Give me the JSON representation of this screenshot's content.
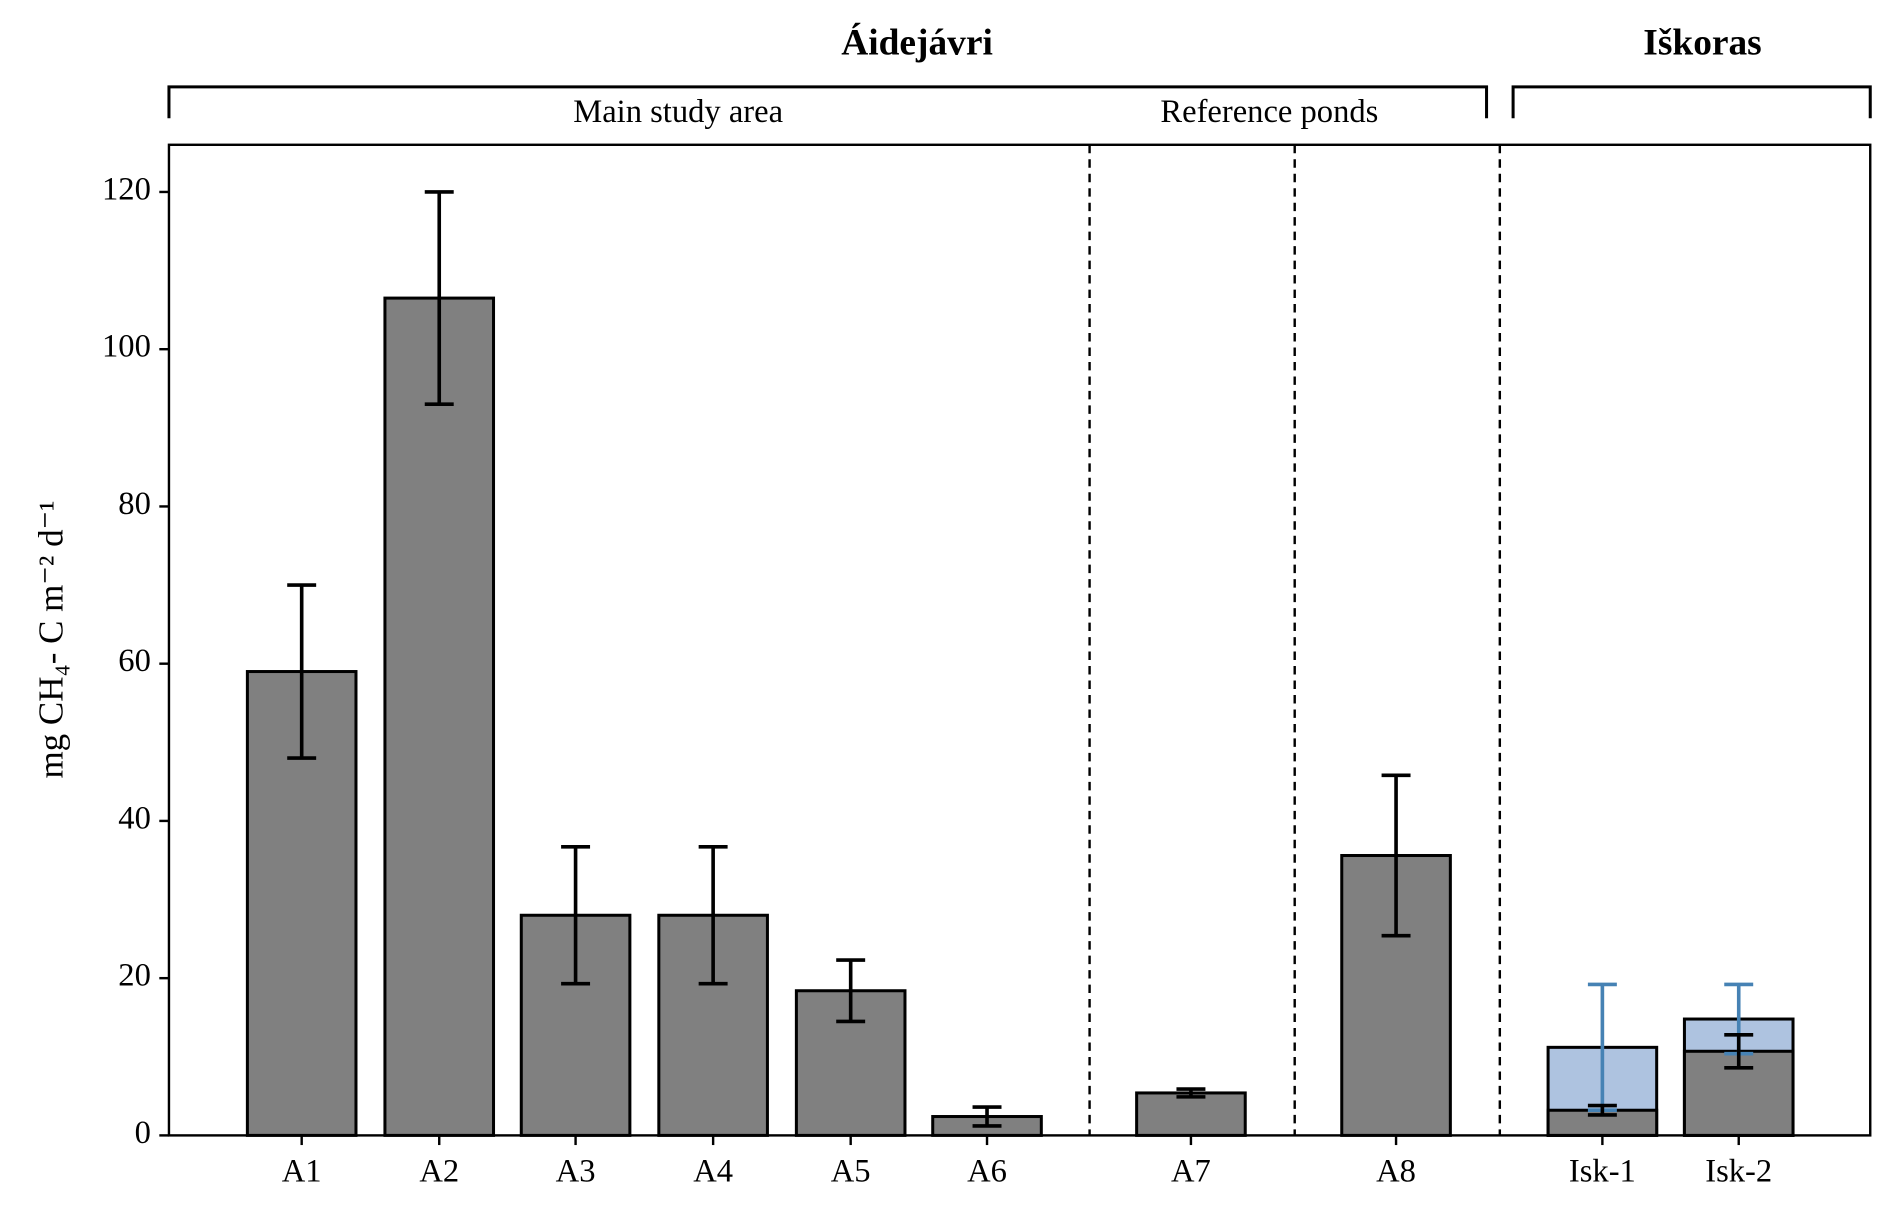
{
  "chart_data": {
    "type": "bar",
    "ylabel": "mg CH₄- C m⁻² d⁻¹",
    "groups": [
      {
        "label": "Áidejávri",
        "subgroups": [
          "Main study area",
          "Reference ponds"
        ]
      },
      {
        "label": "Iškoras"
      }
    ],
    "categories": [
      "A1",
      "A2",
      "A3",
      "A4",
      "A5",
      "A6",
      "A7",
      "A8",
      "Isk-1",
      "Isk-2"
    ],
    "series": [
      {
        "color": "#808080",
        "error_color": "#000000",
        "values": [
          59,
          106.5,
          28,
          28,
          18.4,
          2.4,
          5.4,
          35.6,
          3.2,
          10.7
        ],
        "errors": [
          11,
          13.5,
          8.7,
          8.7,
          3.9,
          1.2,
          0.5,
          10.2,
          0.6,
          2.1
        ]
      },
      {
        "color": "#aec3e0",
        "error_color": "#4682b4",
        "values": [
          null,
          null,
          null,
          null,
          null,
          null,
          null,
          null,
          11.2,
          14.8
        ],
        "errors": [
          null,
          null,
          null,
          null,
          null,
          null,
          null,
          null,
          8,
          4.4
        ]
      }
    ],
    "ylim": [
      0,
      126
    ],
    "yticks": [
      0,
      20,
      40,
      60,
      80,
      100,
      120
    ]
  }
}
